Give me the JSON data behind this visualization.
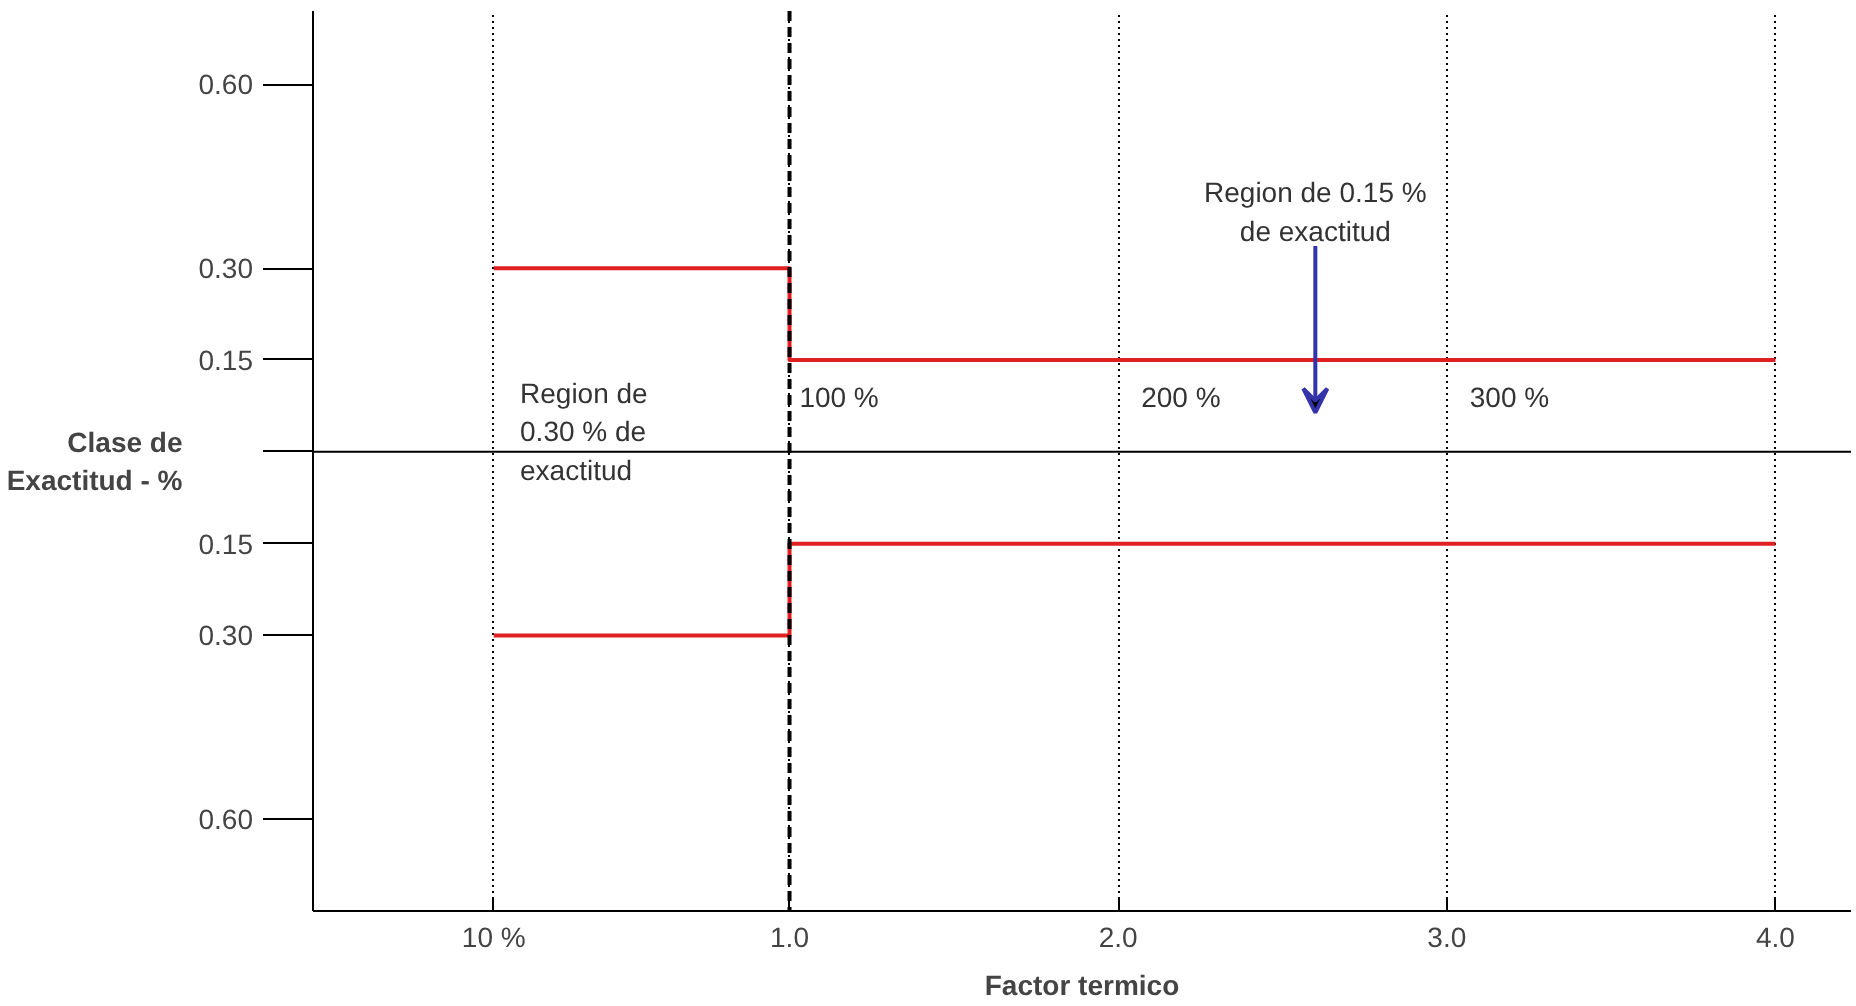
{
  "chart_data": {
    "type": "line",
    "xlabel": "Factor termico",
    "ylabel": "Clase de\nExactitud - %",
    "series": [
      {
        "color": "#e02020",
        "x": [
          0.1,
          1,
          1,
          4
        ],
        "values": [
          0.3,
          0.3,
          0.15,
          0.15
        ]
      },
      {
        "color": "#e02020",
        "x": [
          0.1,
          1,
          1,
          4
        ],
        "values": [
          -0.3,
          -0.3,
          -0.15,
          -0.15
        ]
      }
    ],
    "xlim": [
      -0.45,
      4.23
    ],
    "ylim": [
      -0.75,
      0.72
    ],
    "xticks": [
      {
        "value": 0.1,
        "label": "10 %"
      },
      {
        "value": 1,
        "label": "1.0"
      },
      {
        "value": 2,
        "label": "2.0"
      },
      {
        "value": 3,
        "label": "3.0"
      },
      {
        "value": 4,
        "label": "4.0"
      }
    ],
    "yticks": [
      {
        "value": 0.6,
        "label": "0.60"
      },
      {
        "value": 0.3,
        "label": "0.30"
      },
      0.15,
      {
        "value": 0,
        "label": null
      },
      {
        "value": -0.15,
        "label": "0.15"
      },
      {
        "value": -0.3,
        "label": "0.30"
      },
      {
        "value": -0.6,
        "label": "0.60"
      }
    ],
    "grid": "x",
    "marker": "none",
    "line_style": "solid",
    "ref_lines": [
      {
        "axis": "x",
        "value": 1.0,
        "label": null,
        "color": "#000000",
        "line_style": "dashed"
      },
      {
        "axis": "y",
        "value": 0,
        "label": null,
        "color": "#000000",
        "line_style": "solid"
      }
    ],
    "annotations": [
      "Region de\n0.30 % de\nexactitud",
      "100 %",
      "200 %",
      "300 %",
      "Region de 0.15 %\nde exactitud"
    ]
  }
}
